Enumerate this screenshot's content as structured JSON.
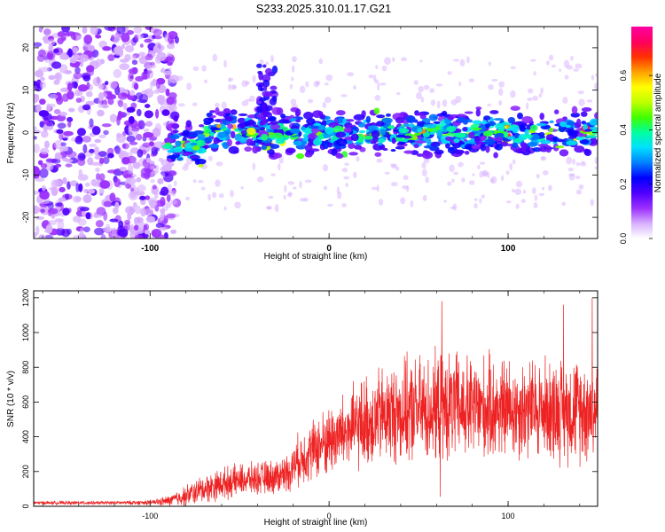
{
  "title": "S233.2025.310.01.17.G21",
  "colors": {
    "scatter_dot": "#7b2bd6",
    "snr_line": "#ee2222",
    "grid_line": "#dddddd"
  },
  "chart_data": [
    {
      "type": "heatmap",
      "title": "S233.2025.310.01.17.G21",
      "xlabel": "Height of straight line (km)",
      "ylabel": "Frequency (Hz)",
      "xlim": [
        -165,
        150
      ],
      "ylim": [
        -25,
        25
      ],
      "x_ticks": [
        -100,
        0,
        100
      ],
      "y_ticks": [
        -20,
        -10,
        0,
        10,
        20
      ],
      "colorbar": {
        "label": "Normalized spectral amplitude",
        "range": [
          0.0,
          0.78
        ],
        "ticks": [
          "0.0",
          "0.2",
          "0.4",
          "0.6"
        ],
        "tick_values": [
          0.0,
          0.2,
          0.4,
          0.6
        ],
        "colormap": [
          "#ffffff",
          "#d8b0ff",
          "#9b30ff",
          "#5000ff",
          "#0000ff",
          "#0080ff",
          "#00e0ff",
          "#00ffa0",
          "#40ff00",
          "#c0ff00",
          "#ffff00",
          "#ffa000",
          "#ff3000",
          "#ff0060",
          "#ff00a0"
        ]
      },
      "description_noise_region": [
        -165,
        -95
      ],
      "signal_band_center_hz": 0,
      "signal_band_halfwidth_hz": 6
    },
    {
      "type": "line",
      "xlabel": "Height of straight line (km)",
      "ylabel": "SNR (10 * v/v)",
      "xlim": [
        -165,
        150
      ],
      "ylim": [
        0,
        1240
      ],
      "x_ticks": [
        -100,
        0,
        100
      ],
      "y_ticks": [
        0,
        200,
        400,
        600,
        800,
        1000,
        1200
      ],
      "envelope": {
        "x": [
          -165,
          -120,
          -100,
          -90,
          -80,
          -70,
          -60,
          -50,
          -40,
          -30,
          -22,
          -18,
          -10,
          0,
          10,
          20,
          30,
          40,
          50,
          60,
          70,
          80,
          90,
          100,
          110,
          120,
          130,
          140,
          150
        ],
        "mean": [
          20,
          20,
          22,
          30,
          60,
          100,
          130,
          150,
          160,
          170,
          200,
          260,
          320,
          380,
          430,
          480,
          520,
          540,
          550,
          560,
          570,
          560,
          560,
          560,
          560,
          560,
          560,
          560,
          560
        ],
        "spread": [
          10,
          10,
          14,
          30,
          60,
          80,
          90,
          90,
          90,
          100,
          110,
          140,
          170,
          200,
          230,
          260,
          280,
          290,
          300,
          310,
          310,
          300,
          300,
          290,
          290,
          290,
          300,
          300,
          300
        ]
      },
      "notable_peaks": [
        {
          "x": 63,
          "y": 1180
        },
        {
          "x": 131,
          "y": 1160
        },
        {
          "x": 147,
          "y": 1200
        }
      ],
      "notable_dips": [
        {
          "x": 62,
          "y": 55
        }
      ]
    }
  ]
}
